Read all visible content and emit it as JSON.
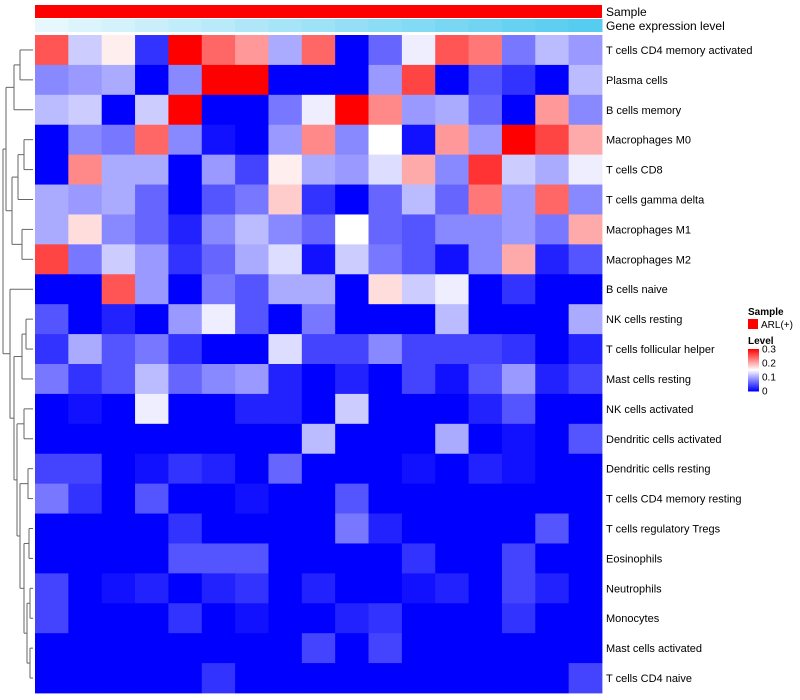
{
  "chart_data": {
    "type": "heatmap",
    "annotations": [
      {
        "name": "Sample",
        "color": "#FF0000"
      },
      {
        "name": "Gene expression level",
        "gradient": [
          "#FFFFFF",
          "#55CCF0"
        ]
      }
    ],
    "rows": [
      "T cells CD4 memory activated",
      "Plasma cells",
      "B cells memory",
      "Macrophages M0",
      "T cells CD8",
      "T cells gamma delta",
      "Macrophages M1",
      "Macrophages M2",
      "B cells naive",
      "NK cells resting",
      "T cells follicular helper",
      "Mast cells resting",
      "NK cells activated",
      "Dendritic cells activated",
      "Dendritic cells resting",
      "T cells CD4 memory resting",
      "T cells regulatory  Tregs",
      "Eosinophils",
      "Neutrophils",
      "Monocytes",
      "Mast cells activated",
      "T cells CD4 naive"
    ],
    "values": [
      [
        0.25,
        0.12,
        0.16,
        0.03,
        0.3,
        0.24,
        0.21,
        0.1,
        0.24,
        0.0,
        0.06,
        0.14,
        0.25,
        0.23,
        0.07,
        0.11,
        0.09
      ],
      [
        0.08,
        0.09,
        0.1,
        0.0,
        0.08,
        0.3,
        0.3,
        0.0,
        0.0,
        0.0,
        0.09,
        0.26,
        0.0,
        0.05,
        0.03,
        0.0,
        0.11
      ],
      [
        0.11,
        0.12,
        0.0,
        0.12,
        0.3,
        0.0,
        0.0,
        0.07,
        0.14,
        0.3,
        0.22,
        0.09,
        0.1,
        0.06,
        0.0,
        0.21,
        0.08
      ],
      [
        0.0,
        0.08,
        0.07,
        0.24,
        0.08,
        0.01,
        0.0,
        0.09,
        0.22,
        0.08,
        0.15,
        0.01,
        0.21,
        0.09,
        0.3,
        0.26,
        0.2
      ],
      [
        0.0,
        0.22,
        0.1,
        0.1,
        0.0,
        0.09,
        0.04,
        0.16,
        0.1,
        0.09,
        0.13,
        0.2,
        0.08,
        0.27,
        0.12,
        0.1,
        0.14
      ],
      [
        0.1,
        0.09,
        0.1,
        0.06,
        0.0,
        0.05,
        0.07,
        0.18,
        0.03,
        0.0,
        0.06,
        0.11,
        0.06,
        0.23,
        0.09,
        0.24,
        0.08
      ],
      [
        0.1,
        0.17,
        0.08,
        0.06,
        0.02,
        0.08,
        0.11,
        0.08,
        0.06,
        0.15,
        0.06,
        0.05,
        0.08,
        0.08,
        0.09,
        0.07,
        0.2
      ],
      [
        0.26,
        0.07,
        0.12,
        0.09,
        0.03,
        0.06,
        0.1,
        0.13,
        0.01,
        0.12,
        0.07,
        0.05,
        0.01,
        0.08,
        0.2,
        0.02,
        0.05
      ],
      [
        0.0,
        0.0,
        0.25,
        0.09,
        0.0,
        0.07,
        0.05,
        0.1,
        0.1,
        0.0,
        0.17,
        0.12,
        0.14,
        0.0,
        0.03,
        0.0,
        0.0
      ],
      [
        0.05,
        0.0,
        0.02,
        0.0,
        0.09,
        0.14,
        0.05,
        0.0,
        0.07,
        0.0,
        0.0,
        0.0,
        0.11,
        0.0,
        0.0,
        0.0,
        0.1
      ],
      [
        0.03,
        0.1,
        0.05,
        0.07,
        0.03,
        0.0,
        0.0,
        0.13,
        0.04,
        0.04,
        0.08,
        0.04,
        0.04,
        0.04,
        0.03,
        0.0,
        0.02
      ],
      [
        0.07,
        0.03,
        0.05,
        0.11,
        0.06,
        0.08,
        0.09,
        0.02,
        0.0,
        0.02,
        0.0,
        0.04,
        0.01,
        0.05,
        0.09,
        0.02,
        0.04
      ],
      [
        0.0,
        0.01,
        0.0,
        0.14,
        0.0,
        0.0,
        0.02,
        0.02,
        0.0,
        0.12,
        0.0,
        0.0,
        0.0,
        0.02,
        0.05,
        0.0,
        0.0
      ],
      [
        0.0,
        0.0,
        0.0,
        0.0,
        0.0,
        0.0,
        0.0,
        0.0,
        0.11,
        0.0,
        0.0,
        0.0,
        0.1,
        0.0,
        0.01,
        0.0,
        0.05
      ],
      [
        0.04,
        0.04,
        0.0,
        0.01,
        0.03,
        0.02,
        0.0,
        0.06,
        0.0,
        0.0,
        0.0,
        0.01,
        0.0,
        0.02,
        0.01,
        0.0,
        0.0
      ],
      [
        0.07,
        0.03,
        0.0,
        0.05,
        0.0,
        0.0,
        0.01,
        0.0,
        0.0,
        0.05,
        0.0,
        0.0,
        0.0,
        0.0,
        0.0,
        0.0,
        0.0
      ],
      [
        0.0,
        0.0,
        0.0,
        0.0,
        0.03,
        0.0,
        0.0,
        0.0,
        0.0,
        0.07,
        0.02,
        0.0,
        0.0,
        0.0,
        0.0,
        0.05,
        0.0
      ],
      [
        0.0,
        0.0,
        0.0,
        0.0,
        0.05,
        0.05,
        0.05,
        0.0,
        0.0,
        0.0,
        0.0,
        0.03,
        0.0,
        0.0,
        0.04,
        0.0,
        0.0
      ],
      [
        0.04,
        0.0,
        0.01,
        0.02,
        0.0,
        0.02,
        0.03,
        0.0,
        0.02,
        0.0,
        0.0,
        0.01,
        0.02,
        0.0,
        0.04,
        0.02,
        0.0
      ],
      [
        0.04,
        0.0,
        0.0,
        0.0,
        0.03,
        0.0,
        0.01,
        0.0,
        0.0,
        0.02,
        0.03,
        0.0,
        0.0,
        0.0,
        0.03,
        0.0,
        0.0
      ],
      [
        0.0,
        0.0,
        0.0,
        0.0,
        0.0,
        0.0,
        0.0,
        0.0,
        0.04,
        0.0,
        0.04,
        0.0,
        0.0,
        0.0,
        0.0,
        0.0,
        0.0
      ],
      [
        0.0,
        0.0,
        0.0,
        0.0,
        0.0,
        0.03,
        0.0,
        0.0,
        0.0,
        0.0,
        0.0,
        0.0,
        0.0,
        0.0,
        0.0,
        0.0,
        0.04
      ]
    ],
    "color_scale": {
      "low": "#0000FF",
      "mid": "#FFFFFF",
      "high": "#FF0000",
      "min": 0,
      "mid_value": 0.15,
      "max": 0.3
    },
    "legend": {
      "sample_title": "Sample",
      "sample_entry": "ARL(+)",
      "sample_color": "#FF0000",
      "level_title": "Level",
      "ticks": [
        {
          "label": "0.3",
          "value": 0.3
        },
        {
          "label": "0.2",
          "value": 0.2
        },
        {
          "label": "0.1",
          "value": 0.1
        },
        {
          "label": "0",
          "value": 0
        }
      ]
    }
  }
}
